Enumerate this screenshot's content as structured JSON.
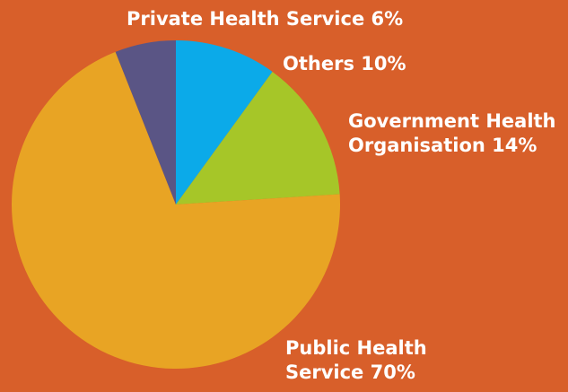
{
  "colors": {
    "background": "#d85f2a",
    "label_text": "#ffffff"
  },
  "chart_data": {
    "type": "pie",
    "title": "",
    "start_angle_deg": 0,
    "direction": "clockwise",
    "slices": [
      {
        "label": "Private Health Service  6%",
        "value": 6,
        "color": "#5a5585"
      },
      {
        "label": "Others 10%",
        "value": 10,
        "color": "#0baae9"
      },
      {
        "label": "Government Health Organisation 14%",
        "value": 14,
        "color": "#a6c628"
      },
      {
        "label": "Public Health Service 70%",
        "value": 70,
        "color": "#e8a424"
      }
    ],
    "slice_order_clockwise_from_top": [
      "Others 10%",
      "Government Health Organisation 14%",
      "Public Health Service 70%",
      "Private Health Service  6%"
    ]
  }
}
